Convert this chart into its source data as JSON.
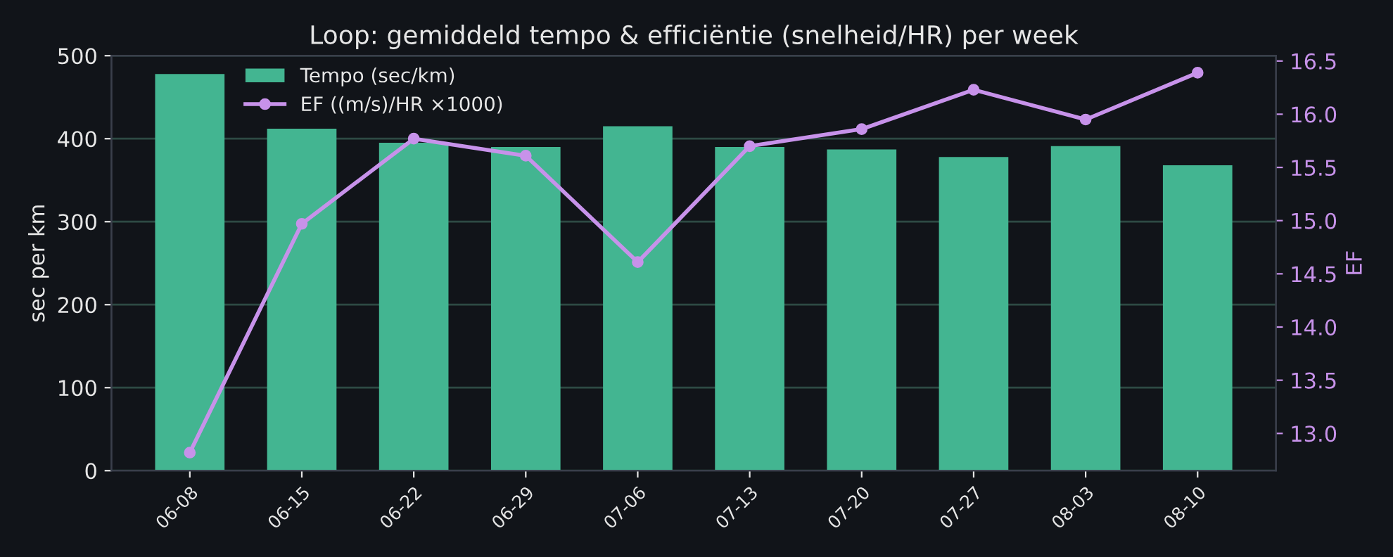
{
  "chart_data": {
    "type": "bar",
    "title": "Loop: gemiddeld tempo & efficiëntie (snelheid/HR) per week",
    "categories": [
      "06-08",
      "06-15",
      "06-22",
      "06-29",
      "07-06",
      "07-13",
      "07-20",
      "07-27",
      "08-03",
      "08-10"
    ],
    "series": [
      {
        "name": "Tempo (sec/km)",
        "color": "#43b591",
        "values": [
          478,
          412,
          395,
          390,
          415,
          390,
          387,
          378,
          391,
          368
        ]
      },
      {
        "name": "EF ((m/s)/HR ×1000)",
        "type": "line",
        "axis": "y2",
        "color": "#c792ea",
        "marker": "circle",
        "values": [
          12.82,
          14.97,
          15.77,
          15.61,
          14.61,
          15.7,
          15.86,
          16.23,
          15.95,
          16.39
        ]
      }
    ],
    "ylabel": "sec per km",
    "y2label": "EF",
    "ylim": [
      0,
      500
    ],
    "yticks": [
      0,
      100,
      200,
      300,
      400,
      500
    ],
    "y2lim": [
      12.65,
      16.55
    ],
    "y2ticks": [
      {
        "value": 13.0,
        "label": "13.0"
      },
      {
        "value": 13.5,
        "label": "13.5"
      },
      {
        "value": 14.0,
        "label": "14.0"
      },
      {
        "value": 14.5,
        "label": "14.5"
      },
      {
        "value": 15.0,
        "label": "15.0"
      },
      {
        "value": 15.5,
        "label": "15.5"
      },
      {
        "value": 16.0,
        "label": "16.0"
      },
      {
        "value": 16.5,
        "label": "16.5"
      }
    ],
    "grid": "y",
    "legend": "top left"
  }
}
